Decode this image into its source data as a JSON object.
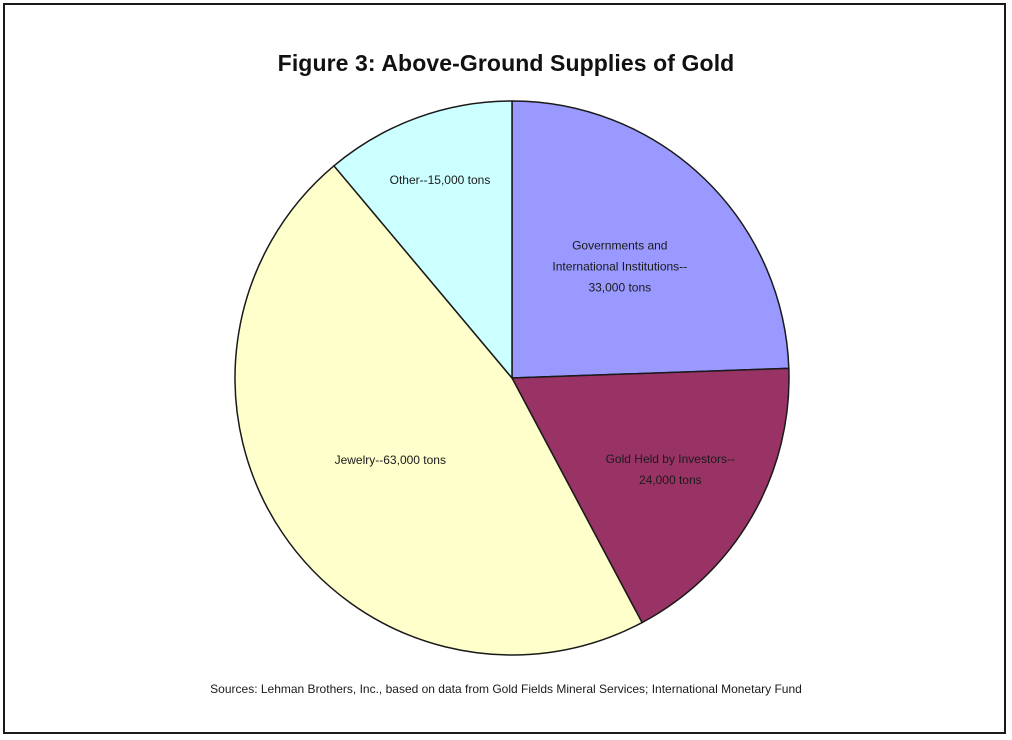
{
  "chart_data": {
    "type": "pie",
    "title": "Figure 3: Above-Ground Supplies of Gold",
    "unit": "tons",
    "slices": [
      {
        "label_lines": [
          "Governments and",
          "International Institutions--",
          "33,000 tons"
        ],
        "value": 33000,
        "color": "#9999ff"
      },
      {
        "label_lines": [
          "Gold Held by Investors--",
          "24,000 tons"
        ],
        "value": 24000,
        "color": "#993366"
      },
      {
        "label_lines": [
          "Jewelry--63,000 tons"
        ],
        "value": 63000,
        "color": "#ffffcc"
      },
      {
        "label_lines": [
          "Other--15,000 tons"
        ],
        "value": 15000,
        "color": "#ccffff"
      }
    ],
    "start_angle": "12 o'clock",
    "direction": "clockwise",
    "legend": "none",
    "source": "Sources: Lehman Brothers, Inc., based on data from Gold Fields Mineral Services; International Monetary Fund"
  }
}
